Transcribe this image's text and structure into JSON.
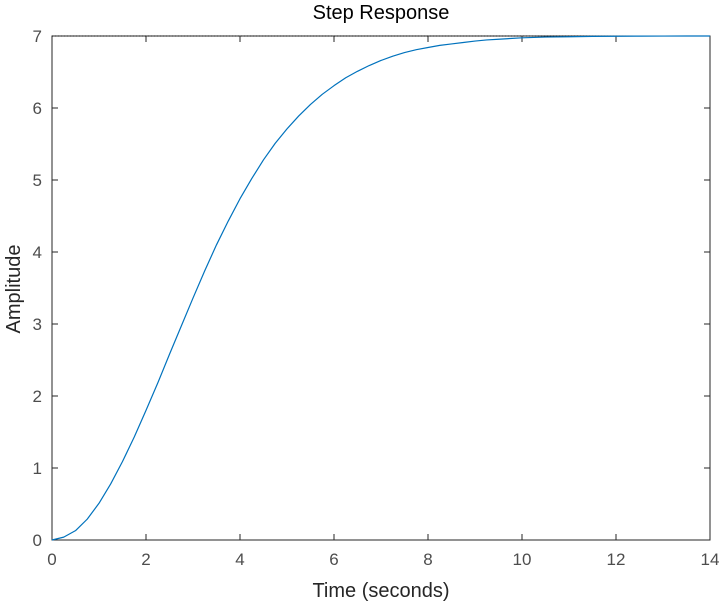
{
  "chart_data": {
    "type": "line",
    "title": "Step Response",
    "xlabel": "Time (seconds)",
    "ylabel": "Amplitude",
    "xlim": [
      0,
      14
    ],
    "ylim": [
      0,
      7
    ],
    "xticks": [
      "0",
      "2",
      "4",
      "6",
      "8",
      "10",
      "12",
      "14"
    ],
    "yticks": [
      "0",
      "1",
      "2",
      "3",
      "4",
      "5",
      "6",
      "7"
    ],
    "grid": false,
    "legend": "none",
    "series": [
      {
        "color": "#0072bd",
        "x": [
          0,
          0.25,
          0.5,
          0.75,
          1,
          1.25,
          1.5,
          1.75,
          2,
          2.25,
          2.5,
          2.75,
          3,
          3.25,
          3.5,
          3.75,
          4,
          4.25,
          4.5,
          4.75,
          5,
          5.25,
          5.5,
          5.75,
          6,
          6.25,
          6.5,
          6.75,
          7,
          7.25,
          7.5,
          7.75,
          8,
          8.25,
          8.5,
          8.75,
          9,
          9.25,
          9.5,
          9.75,
          10,
          10.5,
          11,
          11.5,
          12,
          12.5,
          13,
          13.5,
          14
        ],
        "y": [
          0,
          0.04,
          0.13,
          0.29,
          0.51,
          0.78,
          1.09,
          1.43,
          1.8,
          2.18,
          2.58,
          2.97,
          3.36,
          3.74,
          4.1,
          4.43,
          4.74,
          5.02,
          5.28,
          5.51,
          5.71,
          5.89,
          6.05,
          6.19,
          6.31,
          6.42,
          6.51,
          6.59,
          6.66,
          6.72,
          6.77,
          6.81,
          6.84,
          6.87,
          6.89,
          6.91,
          6.93,
          6.945,
          6.955,
          6.965,
          6.975,
          6.985,
          6.99,
          6.995,
          6.997,
          6.998,
          6.999,
          7.0,
          7.0
        ]
      }
    ],
    "reference_line": {
      "y": 7,
      "style": "dotted",
      "color": "#000000"
    }
  }
}
